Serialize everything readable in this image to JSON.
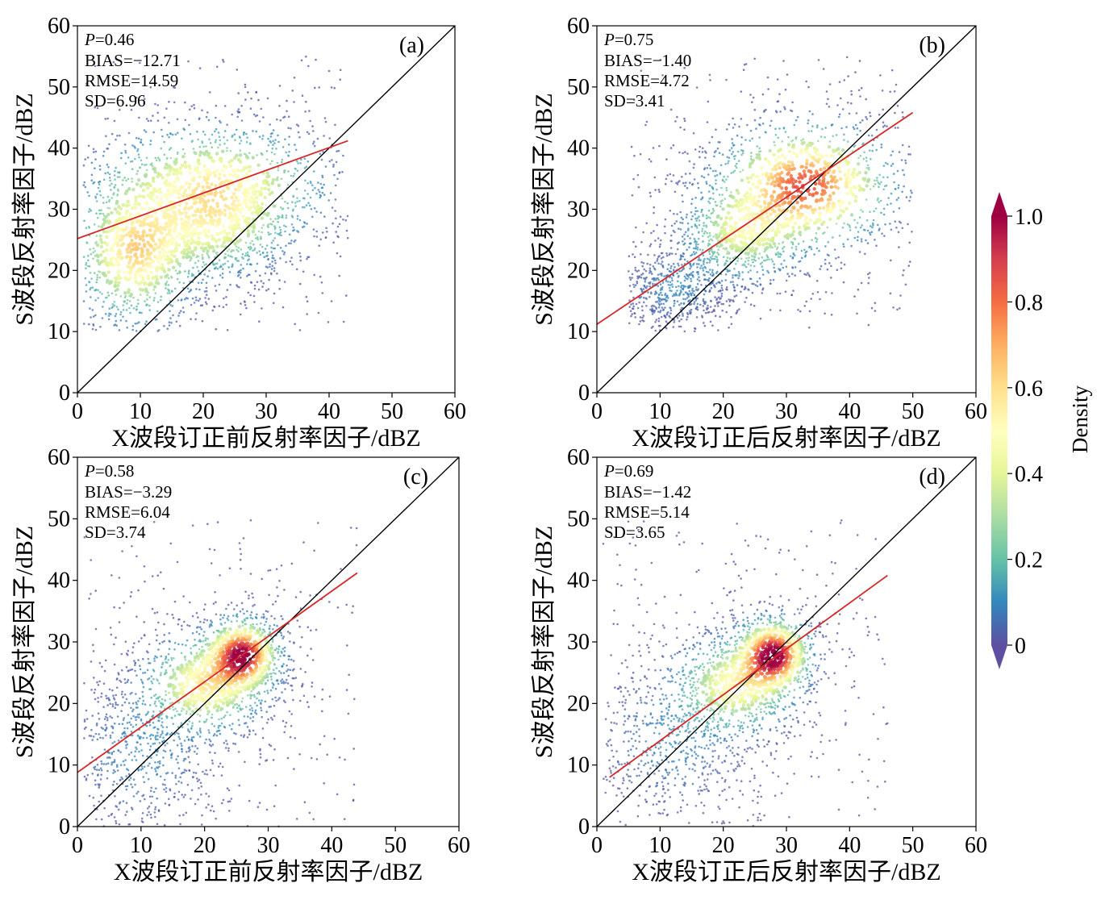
{
  "figure": {
    "colorbar": {
      "label": "Density",
      "ticks": [
        "0",
        "0.2",
        "0.4",
        "0.6",
        "0.8",
        "1.0"
      ],
      "tick_values": [
        0,
        0.2,
        0.4,
        0.6,
        0.8,
        1.0
      ],
      "colormap": [
        "#5e4fa2",
        "#3288bd",
        "#66c2a5",
        "#abdda4",
        "#e6f598",
        "#ffffbf",
        "#fee08b",
        "#fdae61",
        "#f46d43",
        "#d53e4f",
        "#9e0142"
      ]
    },
    "colors": {
      "fit_line": "#d62728",
      "identity_line": "#000000"
    }
  },
  "chart_data": [
    {
      "type": "scatter",
      "panel": "(a)",
      "xlabel": "X波段订正前反射率因子/dBZ",
      "ylabel": "S波段反射率因子/dBZ",
      "xlim": [
        0,
        60
      ],
      "ylim": [
        0,
        60
      ],
      "xticks": [
        0,
        10,
        20,
        30,
        40,
        50,
        60
      ],
      "yticks": [
        0,
        10,
        20,
        30,
        40,
        50,
        60
      ],
      "stats": {
        "P_label": "P",
        "P_value": "=0.46",
        "bias": "BIAS=−12.71",
        "rmse": "RMSE=14.59",
        "sd": "SD=6.96"
      },
      "fit_line": {
        "x": [
          0,
          43
        ],
        "y": [
          25.2,
          41.2
        ]
      },
      "identity_line": {
        "x": [
          0,
          60
        ],
        "y": [
          0,
          60
        ]
      },
      "clusters": [
        {
          "cx": 9,
          "cy": 23,
          "sx": 5,
          "sy": 6,
          "peak": 0.6
        },
        {
          "cx": 22,
          "cy": 34,
          "sx": 9,
          "sy": 5,
          "peak": 0.55
        },
        {
          "cx": 22,
          "cy": 26,
          "sx": 6,
          "sy": 4,
          "peak": 0.3
        }
      ],
      "extent": {
        "xmin": 1,
        "xmax": 43,
        "ymin": 10,
        "ymax": 55
      }
    },
    {
      "type": "scatter",
      "panel": "(b)",
      "xlabel": "X波段订正后反射率因子/dBZ",
      "ylabel": "S波段反射率因子/dBZ",
      "xlim": [
        0,
        60
      ],
      "ylim": [
        0,
        60
      ],
      "xticks": [
        0,
        10,
        20,
        30,
        40,
        50,
        60
      ],
      "yticks": [
        0,
        10,
        20,
        30,
        40,
        50,
        60
      ],
      "stats": {
        "P_label": "P",
        "P_value": "=0.75",
        "bias": "BIAS=−1.40",
        "rmse": "RMSE=4.72",
        "sd": "SD=3.41"
      },
      "fit_line": {
        "x": [
          0,
          50
        ],
        "y": [
          11.2,
          45.8
        ]
      },
      "identity_line": {
        "x": [
          0,
          60
        ],
        "y": [
          0,
          60
        ]
      },
      "clusters": [
        {
          "cx": 33,
          "cy": 34,
          "sx": 7,
          "sy": 5,
          "peak": 0.85
        },
        {
          "cx": 23,
          "cy": 26,
          "sx": 5,
          "sy": 4,
          "peak": 0.4
        },
        {
          "cx": 12,
          "cy": 17,
          "sx": 4,
          "sy": 3,
          "peak": 0.1
        }
      ],
      "extent": {
        "xmin": 5,
        "xmax": 50,
        "ymin": 10,
        "ymax": 55
      }
    },
    {
      "type": "scatter",
      "panel": "(c)",
      "xlabel": "X波段订正前反射率因子/dBZ",
      "ylabel": "S波段反射率因子/dBZ",
      "xlim": [
        0,
        60
      ],
      "ylim": [
        0,
        60
      ],
      "xticks": [
        0,
        10,
        20,
        30,
        40,
        50,
        60
      ],
      "yticks": [
        0,
        10,
        20,
        30,
        40,
        50,
        60
      ],
      "stats": {
        "P_label": "P",
        "P_value": "=0.58",
        "bias": "BIAS=−3.29",
        "rmse": "RMSE=6.04",
        "sd": "SD=3.74"
      },
      "fit_line": {
        "x": [
          0,
          44
        ],
        "y": [
          8.8,
          41.2
        ]
      },
      "identity_line": {
        "x": [
          0,
          60
        ],
        "y": [
          0,
          60
        ]
      },
      "clusters": [
        {
          "cx": 26,
          "cy": 28,
          "sx": 3,
          "sy": 3,
          "peak": 0.95
        },
        {
          "cx": 20,
          "cy": 23,
          "sx": 5,
          "sy": 4,
          "peak": 0.55
        },
        {
          "cx": 10,
          "cy": 12,
          "sx": 6,
          "sy": 6,
          "peak": 0.1
        }
      ],
      "extent": {
        "xmin": 1,
        "xmax": 44,
        "ymin": 0,
        "ymax": 50
      }
    },
    {
      "type": "scatter",
      "panel": "(d)",
      "xlabel": "X波段订正后反射率因子/dBZ",
      "ylabel": "S波段反射率因子/dBZ",
      "xlim": [
        0,
        60
      ],
      "ylim": [
        0,
        60
      ],
      "xticks": [
        0,
        10,
        20,
        30,
        40,
        50,
        60
      ],
      "yticks": [
        0,
        10,
        20,
        30,
        40,
        50,
        60
      ],
      "stats": {
        "P_label": "P",
        "P_value": "=0.69",
        "bias": "BIAS=−1.42",
        "rmse": "RMSE=5.14",
        "sd": "SD=3.65"
      },
      "fit_line": {
        "x": [
          2,
          46
        ],
        "y": [
          8.0,
          40.8
        ]
      },
      "identity_line": {
        "x": [
          0,
          60
        ],
        "y": [
          0,
          60
        ]
      },
      "clusters": [
        {
          "cx": 28,
          "cy": 28,
          "sx": 3,
          "sy": 3,
          "peak": 1.0
        },
        {
          "cx": 22,
          "cy": 23,
          "sx": 5,
          "sy": 4,
          "peak": 0.5
        },
        {
          "cx": 12,
          "cy": 14,
          "sx": 6,
          "sy": 6,
          "peak": 0.1
        }
      ],
      "extent": {
        "xmin": 1,
        "xmax": 46,
        "ymin": 0,
        "ymax": 50
      }
    }
  ]
}
